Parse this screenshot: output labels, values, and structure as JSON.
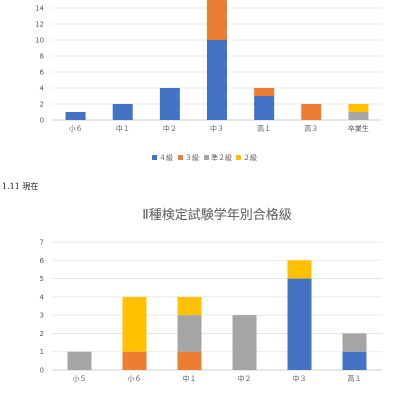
{
  "note": "1.11 現在",
  "chart_data": [
    {
      "type": "bar",
      "stacked": true,
      "title": "",
      "categories": [
        "小６",
        "中１",
        "中２",
        "中３",
        "高１",
        "高３",
        "卒業生"
      ],
      "ylim": [
        0,
        14
      ],
      "yticks": [
        0,
        2,
        4,
        6,
        8,
        10,
        12,
        14
      ],
      "grid": true,
      "legend_position": "bottom",
      "series": [
        {
          "name": "４級",
          "color": "#4472C4",
          "values": [
            1,
            2,
            4,
            10,
            3,
            0,
            0
          ]
        },
        {
          "name": "３級",
          "color": "#ED7D31",
          "values": [
            0,
            0,
            0,
            5,
            1,
            2,
            0
          ]
        },
        {
          "name": "準２級",
          "color": "#A5A5A5",
          "values": [
            0,
            0,
            0,
            0,
            0,
            0,
            1
          ]
        },
        {
          "name": "２級",
          "color": "#FFC000",
          "values": [
            0,
            0,
            0,
            0,
            0,
            0,
            1
          ]
        }
      ]
    },
    {
      "type": "bar",
      "stacked": true,
      "title": "Ⅱ種検定試験学年別合格級",
      "categories": [
        "小５",
        "小６",
        "中１",
        "中２",
        "中３",
        "高１"
      ],
      "ylim": [
        0,
        7
      ],
      "yticks": [
        0,
        1,
        2,
        3,
        4,
        5,
        6,
        7
      ],
      "grid": true,
      "series": [
        {
          "name": "４級",
          "color": "#4472C4",
          "values": [
            0,
            0,
            0,
            0,
            5,
            1
          ]
        },
        {
          "name": "３級",
          "color": "#ED7D31",
          "values": [
            0,
            1,
            1,
            0,
            0,
            0
          ]
        },
        {
          "name": "準２級",
          "color": "#A5A5A5",
          "values": [
            1,
            0,
            2,
            3,
            0,
            1
          ]
        },
        {
          "name": "２級",
          "color": "#FFC000",
          "values": [
            0,
            3,
            1,
            0,
            1,
            0
          ]
        }
      ]
    }
  ]
}
